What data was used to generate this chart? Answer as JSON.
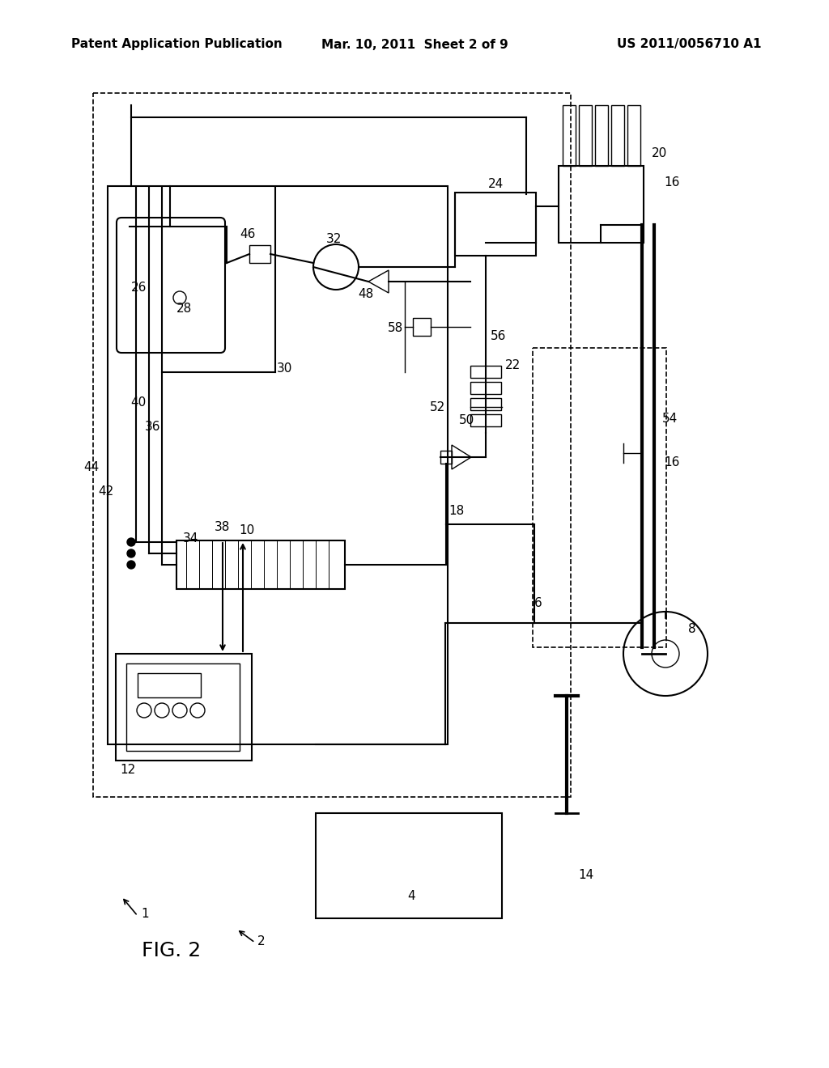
{
  "bg": "#ffffff",
  "header_left": "Patent Application Publication",
  "header_center": "Mar. 10, 2011  Sheet 2 of 9",
  "header_right": "US 2011/0056710 A1",
  "fig_label": "FIG. 2",
  "lw_main": 1.5,
  "lw_thin": 1.0,
  "lw_dashed": 1.2
}
